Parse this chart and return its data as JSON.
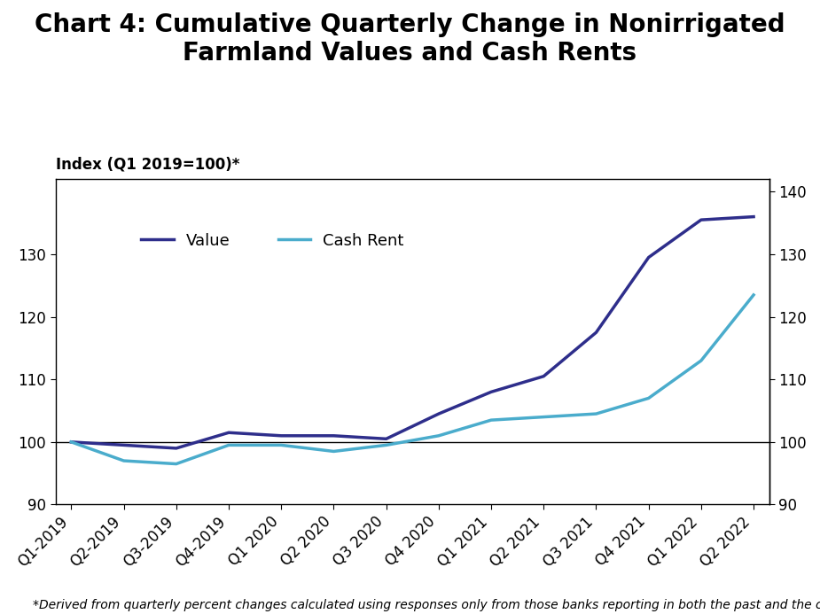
{
  "title": "Chart 4: Cumulative Quarterly Change in Nonirrigated\nFarmland Values and Cash Rents",
  "ylabel_left": "Index (Q1 2019=100)*",
  "footnote": "*Derived from quarterly percent changes calculated using responses only from those banks reporting in both the past and the current quarters.",
  "quarters": [
    "Q1-2019",
    "Q2-2019",
    "Q3-2019",
    "Q4-2019",
    "Q1 2020",
    "Q2 2020",
    "Q3 2020",
    "Q4 2020",
    "Q1 2021",
    "Q2 2021",
    "Q3 2021",
    "Q4 2021",
    "Q1 2022",
    "Q2 2022"
  ],
  "value_data": [
    100,
    99.5,
    99.0,
    101.5,
    101.0,
    101.0,
    100.5,
    104.5,
    108.0,
    110.5,
    117.5,
    129.5,
    135.5,
    136.0
  ],
  "cash_rent_data": [
    100,
    97.0,
    96.5,
    99.5,
    99.5,
    98.5,
    99.5,
    101.0,
    103.5,
    104.0,
    104.5,
    107.0,
    113.0,
    123.5
  ],
  "value_color": "#2E2E8B",
  "cash_rent_color": "#4AACCC",
  "ylim": [
    90,
    142
  ],
  "yticks_left": [
    90,
    100,
    110,
    120,
    130
  ],
  "yticks_right": [
    90,
    100,
    110,
    120,
    130,
    140
  ],
  "background_color": "#FFFFFF",
  "title_fontsize": 20,
  "legend_fontsize": 13,
  "tick_fontsize": 12,
  "ylabel_fontsize": 12,
  "footnote_fontsize": 10,
  "line_width": 2.5
}
